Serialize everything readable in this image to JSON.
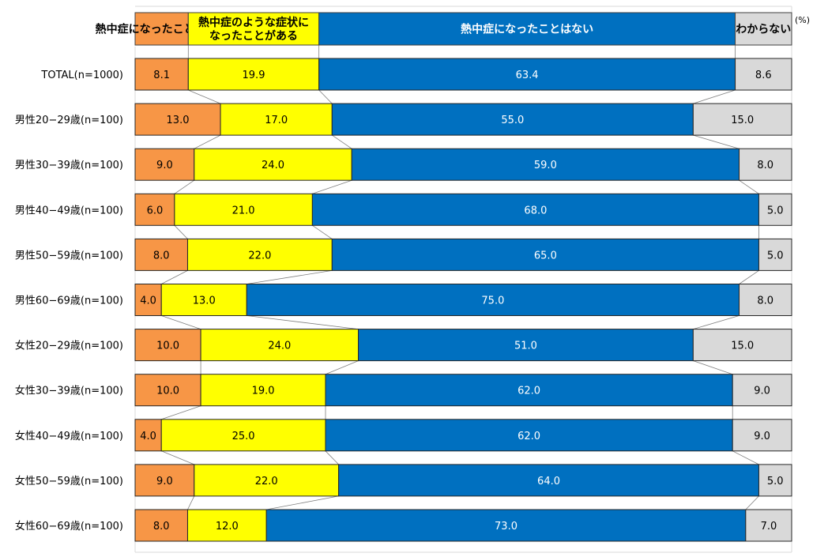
{
  "chart_data": {
    "type": "bar",
    "orientation": "horizontal",
    "stacked": true,
    "percent_stacked": true,
    "unit_label": "(%)",
    "legend_position": "top",
    "grid": false,
    "xlim": [
      0,
      100
    ],
    "categories": [
      "TOTAL(n=1000)",
      "男性20−29歳(n=100)",
      "男性30−39歳(n=100)",
      "男性40−49歳(n=100)",
      "男性50−59歳(n=100)",
      "男性60−69歳(n=100)",
      "女性20−29歳(n=100)",
      "女性30−39歳(n=100)",
      "女性40−49歳(n=100)",
      "女性50−59歳(n=100)",
      "女性60−69歳(n=100)"
    ],
    "series": [
      {
        "name": "熱中症になったことがある",
        "color": "#f79646",
        "label_color": "#000000",
        "values": [
          8.1,
          13.0,
          9.0,
          6.0,
          8.0,
          4.0,
          10.0,
          10.0,
          4.0,
          9.0,
          8.0
        ],
        "labels": [
          "8.1",
          "13.0",
          "9.0",
          "6.0",
          "8.0",
          "4.0",
          "10.0",
          "10.0",
          "4.0",
          "9.0",
          "8.0"
        ]
      },
      {
        "name": "熱中症のような症状になったことがある",
        "name_lines": [
          "熱中症のような症状に",
          "なったことがある"
        ],
        "color": "#ffff00",
        "label_color": "#000000",
        "values": [
          19.9,
          17.0,
          24.0,
          21.0,
          22.0,
          13.0,
          24.0,
          19.0,
          25.0,
          22.0,
          12.0
        ],
        "labels": [
          "19.9",
          "17.0",
          "24.0",
          "21.0",
          "22.0",
          "13.0",
          "24.0",
          "19.0",
          "25.0",
          "22.0",
          "12.0"
        ]
      },
      {
        "name": "熱中症になったことはない",
        "color": "#0070c0",
        "label_color": "#ffffff",
        "values": [
          63.4,
          55.0,
          59.0,
          68.0,
          65.0,
          75.0,
          51.0,
          62.0,
          62.0,
          64.0,
          73.0
        ],
        "labels": [
          "63.4",
          "55.0",
          "59.0",
          "68.0",
          "65.0",
          "75.0",
          "51.0",
          "62.0",
          "62.0",
          "64.0",
          "73.0"
        ]
      },
      {
        "name": "わからない",
        "color": "#d9d9d9",
        "label_color": "#000000",
        "values": [
          8.6,
          15.0,
          8.0,
          5.0,
          5.0,
          8.0,
          15.0,
          9.0,
          9.0,
          5.0,
          7.0
        ],
        "labels": [
          "8.6",
          "15.0",
          "8.0",
          "5.0",
          "5.0",
          "8.0",
          "15.0",
          "9.0",
          "9.0",
          "5.0",
          "7.0"
        ]
      }
    ]
  }
}
